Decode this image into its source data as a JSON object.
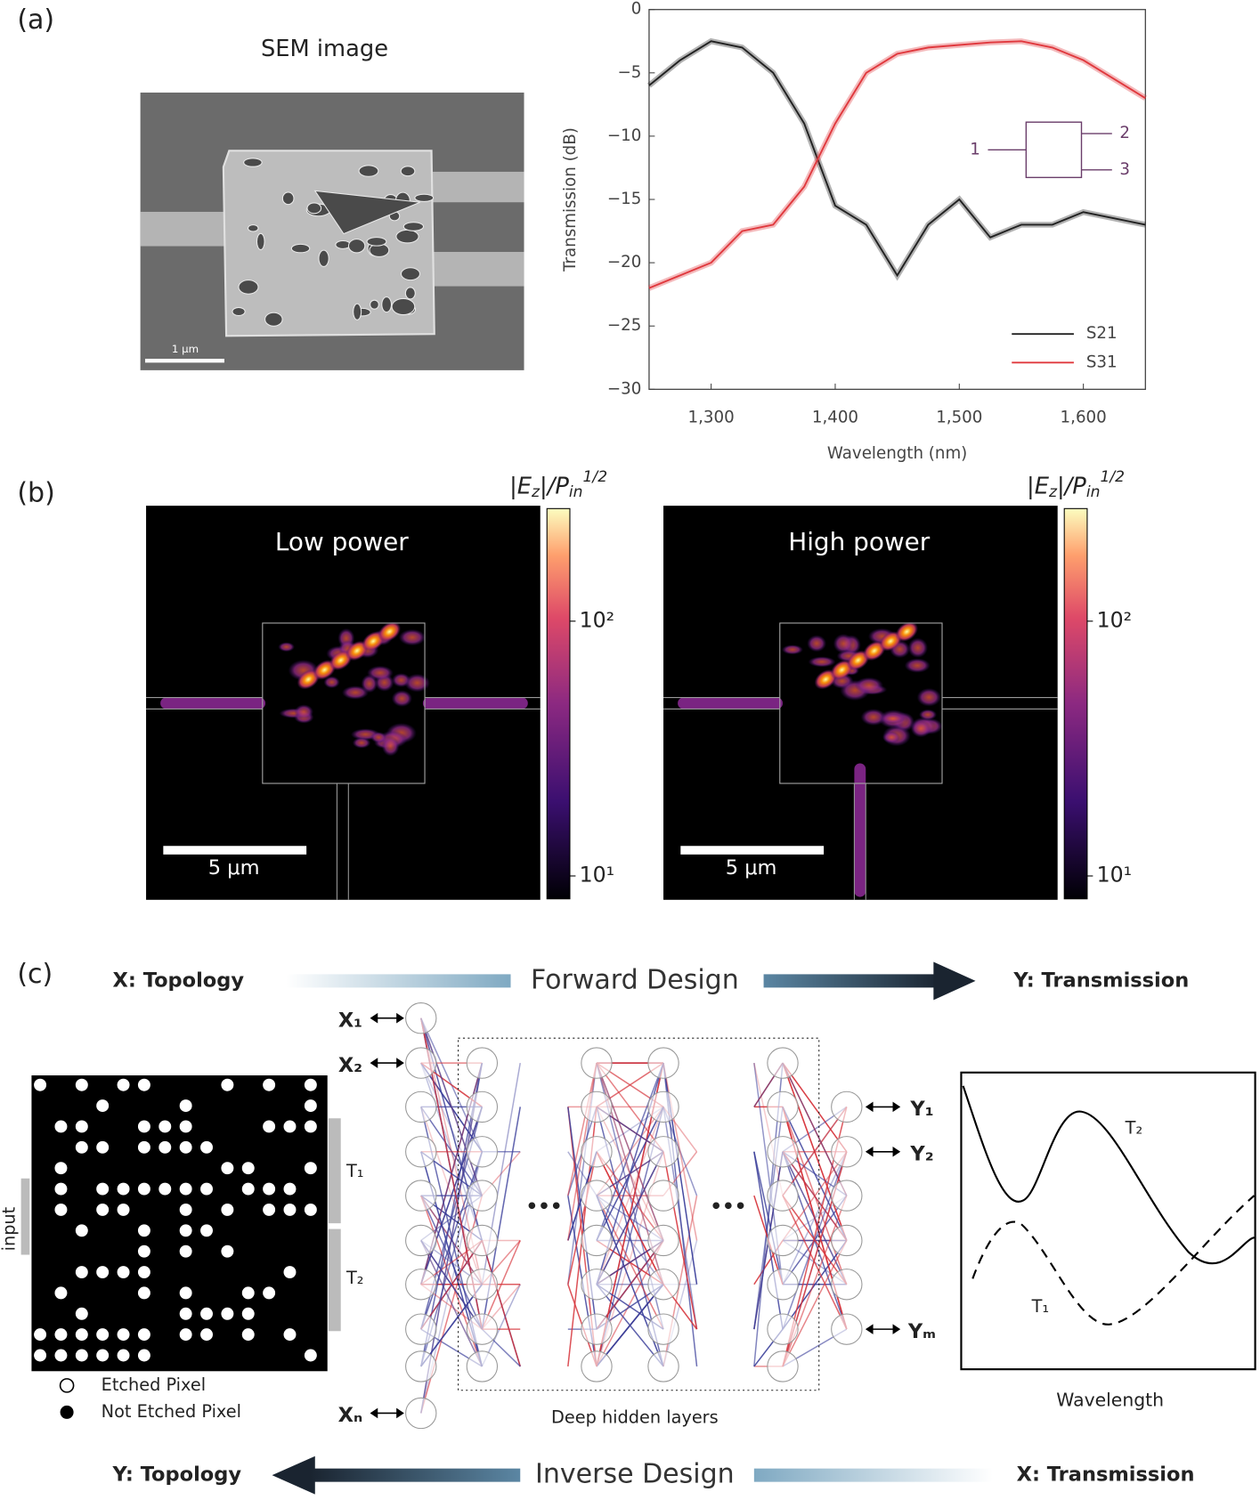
{
  "panel_a": {
    "label": "(a)",
    "sem_title": "SEM image",
    "scale_bar": "1 μm",
    "port_labels": [
      "1",
      "2",
      "3"
    ]
  },
  "chart_data": {
    "type": "line",
    "xlabel": "Wavelength (nm)",
    "ylabel": "Transmission (dB)",
    "x": [
      1250,
      1275,
      1300,
      1325,
      1350,
      1375,
      1400,
      1425,
      1450,
      1475,
      1500,
      1525,
      1550,
      1575,
      1600,
      1625,
      1650
    ],
    "series": [
      {
        "name": "S21",
        "color": "#222222",
        "values": [
          -6,
          -4,
          -2.5,
          -3,
          -5,
          -9,
          -15.5,
          -17,
          -21,
          -17,
          -15,
          -18,
          -17,
          -17,
          -16,
          -16.5,
          -17
        ]
      },
      {
        "name": "S31",
        "color": "#e0393e",
        "values": [
          -22,
          -21,
          -20,
          -17.5,
          -17,
          -14,
          -9,
          -5,
          -3.5,
          -3,
          -2.8,
          -2.6,
          -2.5,
          -3,
          -4,
          -5.5,
          -7
        ]
      }
    ],
    "xlim": [
      1250,
      1650
    ],
    "ylim": [
      -30,
      0
    ],
    "xticks": [
      {
        "value": 1300,
        "label": "1,300"
      },
      {
        "value": 1400,
        "label": "1,400"
      },
      {
        "value": 1500,
        "label": "1,500"
      },
      {
        "value": 1600,
        "label": "1,600"
      }
    ],
    "yticks": [
      0,
      {
        "value": -5,
        "label": "−5"
      },
      {
        "value": -10,
        "label": "−10"
      },
      {
        "value": -15,
        "label": "−15"
      },
      {
        "value": -20,
        "label": "−20"
      },
      {
        "value": -25,
        "label": "−25"
      },
      {
        "value": -30,
        "label": "−30"
      }
    ]
  },
  "panel_b": {
    "label": "(b)",
    "maps": [
      {
        "title": "Low power",
        "scale_bar": "5 μm"
      },
      {
        "title": "High power",
        "scale_bar": "5 μm"
      }
    ],
    "colorbar_label": {
      "a": "|E",
      "b": "z",
      "c": "|/P",
      "d": "in",
      "e": "1/2"
    },
    "colorbar_ticks": [
      {
        "value": 100,
        "label": "10²"
      },
      {
        "value": 10,
        "label": "10¹"
      }
    ]
  },
  "panel_c": {
    "label": "(c)",
    "x_topology": "X: Topology",
    "forward": "Forward Design",
    "y_transmission": "Y: Transmission",
    "inputs": [
      "X₁",
      "X₂",
      "Xₙ"
    ],
    "outputs": [
      "Y₁",
      "Y₂",
      "Yₘ"
    ],
    "t1": "T₁",
    "t2": "T₂",
    "input": "input",
    "etched": "Etched Pixel",
    "not_etched": "Not Etched Pixel",
    "hidden": "Deep hidden layers",
    "dots": "•••",
    "y_topology": "Y: Topology",
    "inverse": "Inverse Design",
    "x_transmission": "X: Transmission",
    "wavelength": "Wavelength",
    "curve_t2": "T₂",
    "curve_t1": "T₁"
  }
}
